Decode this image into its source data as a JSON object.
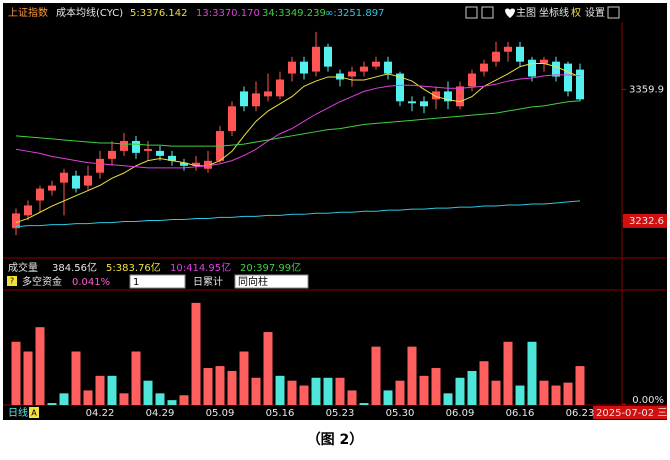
{
  "window": {
    "symbol": "上证指数",
    "indicator_name": "成本均线(CYC)",
    "menu": [
      "主图",
      "坐标线",
      "权",
      "设置"
    ],
    "volume_row": {
      "label": "成交量",
      "value": "384.56亿",
      "ma": [
        {
          "text": "5:383.76亿",
          "color": "#f0e040"
        },
        {
          "text": "10:414.95亿",
          "color": "#e040e0"
        },
        {
          "text": "20:397.99亿",
          "color": "#40d040"
        }
      ]
    },
    "sub_row": {
      "help": "?",
      "label": "多空资金",
      "value": "0.041%",
      "select1": "1",
      "accumulate": "日累计",
      "select2": "同向柱"
    },
    "period": "日线",
    "marker": "A",
    "date_box": "2025-07-02 三"
  },
  "chart_data": [
    {
      "type": "candlestick",
      "up_color": "#ff5454",
      "down_color": "#54f0f0",
      "ylim": [
        3196.7,
        3425.2
      ],
      "yticks": [
        3359.9,
        3232.6
      ],
      "ytick_styles": [
        "plain",
        "boxed"
      ],
      "open": [
        3225.5,
        3238.0,
        3252.4,
        3262.0,
        3269.7,
        3276.4,
        3266.8,
        3279.3,
        3292.7,
        3300.4,
        3310.0,
        3300.4,
        3300.4,
        3295.6,
        3288.9,
        3286.0,
        3283.1,
        3290.8,
        3319.6,
        3358.0,
        3343.6,
        3353.2,
        3353.2,
        3375.3,
        3386.8,
        3377.2,
        3401.2,
        3375.3,
        3372.4,
        3377.2,
        3382.0,
        3386.8,
        3375.3,
        3348.4,
        3348.4,
        3350.3,
        3358.0,
        3343.6,
        3362.8,
        3377.2,
        3386.8,
        3396.4,
        3401.2,
        3388.7,
        3384.9,
        3386.8,
        3384.9,
        3379.1
      ],
      "high": [
        3244.7,
        3252.4,
        3266.8,
        3271.6,
        3283.1,
        3281.2,
        3286.0,
        3300.4,
        3310.0,
        3317.7,
        3314.8,
        3310.0,
        3305.2,
        3300.4,
        3292.7,
        3295.6,
        3300.4,
        3324.4,
        3348.4,
        3362.8,
        3367.6,
        3375.3,
        3377.2,
        3391.6,
        3391.6,
        3415.6,
        3404.1,
        3379.1,
        3382.0,
        3386.8,
        3391.6,
        3391.6,
        3377.2,
        3353.2,
        3353.2,
        3362.8,
        3367.6,
        3367.6,
        3379.1,
        3388.7,
        3406.0,
        3406.0,
        3406.0,
        3391.6,
        3391.6,
        3391.6,
        3386.8,
        3384.9
      ],
      "low": [
        3218.8,
        3233.2,
        3240.9,
        3257.2,
        3238.0,
        3260.1,
        3262.0,
        3273.5,
        3286.0,
        3295.6,
        3292.7,
        3290.8,
        3290.8,
        3286.0,
        3281.2,
        3281.2,
        3279.3,
        3288.9,
        3314.8,
        3338.8,
        3338.8,
        3348.4,
        3350.3,
        3367.6,
        3369.5,
        3372.4,
        3377.2,
        3362.8,
        3362.8,
        3372.4,
        3379.1,
        3369.5,
        3343.6,
        3338.8,
        3336.9,
        3340.7,
        3340.7,
        3340.7,
        3358.0,
        3372.4,
        3382.0,
        3386.8,
        3382.0,
        3367.6,
        3377.2,
        3367.6,
        3353.2,
        3348.4
      ],
      "close": [
        3239.9,
        3247.6,
        3263.9,
        3266.8,
        3279.3,
        3263.9,
        3276.4,
        3292.7,
        3300.4,
        3310.0,
        3298.5,
        3302.3,
        3295.6,
        3290.8,
        3286.0,
        3288.9,
        3290.8,
        3319.6,
        3343.6,
        3343.6,
        3356.1,
        3358.0,
        3369.5,
        3386.8,
        3375.3,
        3401.2,
        3382.0,
        3369.5,
        3377.2,
        3382.0,
        3386.8,
        3375.3,
        3348.4,
        3346.5,
        3343.6,
        3358.0,
        3348.4,
        3362.8,
        3375.3,
        3384.9,
        3396.4,
        3401.2,
        3386.8,
        3372.4,
        3388.7,
        3372.4,
        3358.0,
        3350.3
      ],
      "series": [
        {
          "name": "5:3376.142",
          "color": "#f0e040",
          "values": [
            3231,
            3235,
            3241,
            3247,
            3252,
            3257,
            3262,
            3267,
            3274,
            3279,
            3286,
            3291,
            3293,
            3291,
            3289,
            3286,
            3286,
            3291,
            3300,
            3315,
            3329,
            3339,
            3346,
            3353,
            3363,
            3368,
            3372,
            3372,
            3369,
            3369,
            3372,
            3375,
            3372,
            3368,
            3360,
            3353,
            3350,
            3348,
            3353,
            3363,
            3369,
            3375,
            3382,
            3385,
            3385,
            3382,
            3377,
            3372
          ]
        },
        {
          "name": "13:3370.170",
          "color": "#e040e0",
          "values": [
            3302,
            3300,
            3298,
            3295,
            3293,
            3291,
            3289,
            3288,
            3287,
            3286,
            3285,
            3284,
            3284,
            3284,
            3284,
            3285,
            3286,
            3288,
            3291,
            3296,
            3302,
            3310,
            3317,
            3322,
            3329,
            3336,
            3342,
            3348,
            3353,
            3358,
            3361,
            3363,
            3364,
            3364,
            3363,
            3362,
            3361,
            3361,
            3362,
            3363,
            3365,
            3368,
            3370,
            3371,
            3373,
            3374,
            3374,
            3373
          ]
        },
        {
          "name": "34:3349.239",
          "color": "#40d040",
          "values": [
            3315,
            3314,
            3313,
            3312,
            3311,
            3310,
            3309,
            3308,
            3308,
            3307,
            3307,
            3306,
            3306,
            3305,
            3305,
            3305,
            3305,
            3305,
            3306,
            3307,
            3309,
            3311,
            3313,
            3315,
            3317,
            3319,
            3321,
            3322,
            3324,
            3326,
            3327,
            3328,
            3329,
            3330,
            3331,
            3332,
            3333,
            3334,
            3335,
            3336,
            3337,
            3339,
            3341,
            3343,
            3344,
            3346,
            3348,
            3349
          ]
        },
        {
          "name": "∞:3251.897",
          "color": "#30c8e0",
          "values": [
            3227,
            3228,
            3228,
            3229,
            3229,
            3230,
            3230,
            3231,
            3231,
            3232,
            3232,
            3233,
            3233,
            3234,
            3234,
            3235,
            3235,
            3236,
            3236,
            3237,
            3237,
            3238,
            3238,
            3239,
            3239,
            3240,
            3240,
            3241,
            3241,
            3242,
            3242,
            3243,
            3243,
            3244,
            3244,
            3245,
            3245,
            3246,
            3246,
            3247,
            3247,
            3248,
            3248,
            3249,
            3249,
            3250,
            3251,
            3252
          ]
        }
      ]
    },
    {
      "type": "bar",
      "ylim": [
        0,
        0.11
      ],
      "yticks": [
        {
          "value": 0,
          "label": "0.00%"
        }
      ],
      "categories": [
        null,
        null,
        null,
        null,
        null,
        null,
        null,
        "04.22",
        null,
        null,
        null,
        null,
        "04.29",
        null,
        null,
        null,
        null,
        "05.09",
        null,
        null,
        null,
        null,
        "05.16",
        null,
        null,
        null,
        null,
        "05.23",
        null,
        null,
        null,
        null,
        "05.30",
        null,
        null,
        null,
        null,
        "06.09",
        null,
        null,
        null,
        null,
        "06.16",
        null,
        null,
        null,
        null,
        "06.23"
      ],
      "values": [
        0.065,
        0.055,
        0.08,
        0.002,
        0.012,
        0.055,
        0.015,
        0.03,
        0.03,
        0.012,
        0.055,
        0.025,
        0.012,
        0.005,
        0.01,
        0.105,
        0.038,
        0.04,
        0.035,
        0.055,
        0.028,
        0.075,
        0.03,
        0.025,
        0.02,
        0.028,
        0.028,
        0.028,
        0.015,
        0.002,
        0.06,
        0.015,
        0.025,
        0.06,
        0.03,
        0.038,
        0.012,
        0.028,
        0.035,
        0.045,
        0.025,
        0.065,
        0.02,
        0.065,
        0.025,
        0.02,
        0.023,
        0.04
      ],
      "colors": [
        "#ff5f5f",
        "#ff5f5f",
        "#ff5f5f",
        "#4ee6d8",
        "#4ee6d8",
        "#ff5f5f",
        "#ff5f5f",
        "#ff5f5f",
        "#4ee6d8",
        "#ff5f5f",
        "#ff5f5f",
        "#4ee6d8",
        "#4ee6d8",
        "#4ee6d8",
        "#ff5f5f",
        "#ff5f5f",
        "#ff5f5f",
        "#ff5f5f",
        "#ff5f5f",
        "#ff5f5f",
        "#ff5f5f",
        "#ff5f5f",
        "#4ee6d8",
        "#ff5f5f",
        "#ff5f5f",
        "#4ee6d8",
        "#4ee6d8",
        "#ff5f5f",
        "#ff5f5f",
        "#4ee6d8",
        "#ff5f5f",
        "#4ee6d8",
        "#ff5f5f",
        "#ff5f5f",
        "#ff5f5f",
        "#ff5f5f",
        "#4ee6d8",
        "#4ee6d8",
        "#4ee6d8",
        "#ff5f5f",
        "#ff5f5f",
        "#ff5f5f",
        "#4ee6d8",
        "#4ee6d8",
        "#ff5f5f",
        "#ff5f5f",
        "#ff5f5f",
        "#ff5f5f"
      ]
    }
  ],
  "caption": "（图 2）"
}
